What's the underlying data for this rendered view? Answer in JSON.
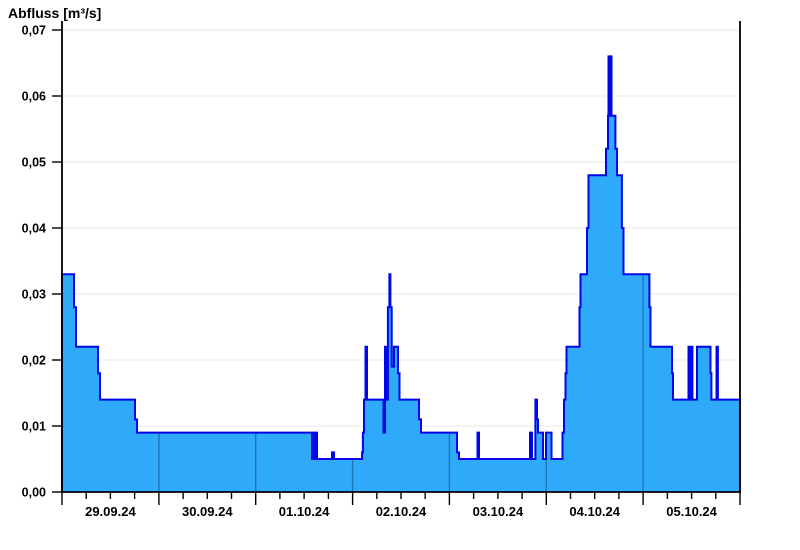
{
  "chart_data": {
    "type": "area",
    "title": "Abfluss [m³/s]",
    "ylabel": "Abfluss [m³/s]",
    "xlabel": "",
    "ylim": [
      0,
      0.07
    ],
    "x_days_total": 7,
    "x_unit": "days since 29.09.24 00:00",
    "grid": "horizontal-light, day-separators-inside-fill",
    "legend": "none",
    "y_ticks": [
      0,
      0.01,
      0.02,
      0.03,
      0.04,
      0.05,
      0.06,
      0.07
    ],
    "y_tick_labels": [
      "0,00",
      "0,01",
      "0,02",
      "0,03",
      "0,04",
      "0,05",
      "0,06",
      "0,07"
    ],
    "x_day_labels": [
      "29.09.24",
      "30.09.24",
      "01.10.24",
      "02.10.24",
      "03.10.24",
      "04.10.24",
      "05.10.24"
    ],
    "minor_ticks_per_day": 4,
    "step_points": [
      [
        0.0,
        0.033
      ],
      [
        0.124,
        0.028
      ],
      [
        0.145,
        0.022
      ],
      [
        0.372,
        0.018
      ],
      [
        0.392,
        0.014
      ],
      [
        0.754,
        0.011
      ],
      [
        0.774,
        0.009
      ],
      [
        2.581,
        0.005
      ],
      [
        2.591,
        0.009
      ],
      [
        2.607,
        0.005
      ],
      [
        2.617,
        0.009
      ],
      [
        2.633,
        0.005
      ],
      [
        2.788,
        0.006
      ],
      [
        2.808,
        0.005
      ],
      [
        3.097,
        0.006
      ],
      [
        3.107,
        0.009
      ],
      [
        3.118,
        0.014
      ],
      [
        3.133,
        0.022
      ],
      [
        3.149,
        0.014
      ],
      [
        3.319,
        0.009
      ],
      [
        3.335,
        0.022
      ],
      [
        3.35,
        0.014
      ],
      [
        3.365,
        0.028
      ],
      [
        3.38,
        0.033
      ],
      [
        3.391,
        0.028
      ],
      [
        3.404,
        0.019
      ],
      [
        3.427,
        0.022
      ],
      [
        3.469,
        0.018
      ],
      [
        3.484,
        0.014
      ],
      [
        3.686,
        0.011
      ],
      [
        3.706,
        0.009
      ],
      [
        4.078,
        0.006
      ],
      [
        4.099,
        0.005
      ],
      [
        4.29,
        0.009
      ],
      [
        4.305,
        0.005
      ],
      [
        4.832,
        0.009
      ],
      [
        4.852,
        0.005
      ],
      [
        4.888,
        0.014
      ],
      [
        4.904,
        0.011
      ],
      [
        4.914,
        0.009
      ],
      [
        4.966,
        0.005
      ],
      [
        4.997,
        0.009
      ],
      [
        5.054,
        0.005
      ],
      [
        5.167,
        0.009
      ],
      [
        5.183,
        0.014
      ],
      [
        5.198,
        0.018
      ],
      [
        5.209,
        0.022
      ],
      [
        5.343,
        0.028
      ],
      [
        5.353,
        0.033
      ],
      [
        5.42,
        0.04
      ],
      [
        5.436,
        0.048
      ],
      [
        5.617,
        0.052
      ],
      [
        5.637,
        0.057
      ],
      [
        5.642,
        0.066
      ],
      [
        5.653,
        0.057
      ],
      [
        5.663,
        0.066
      ],
      [
        5.673,
        0.057
      ],
      [
        5.714,
        0.052
      ],
      [
        5.73,
        0.048
      ],
      [
        5.781,
        0.04
      ],
      [
        5.797,
        0.033
      ],
      [
        6.065,
        0.028
      ],
      [
        6.076,
        0.022
      ],
      [
        6.298,
        0.018
      ],
      [
        6.308,
        0.014
      ],
      [
        6.468,
        0.022
      ],
      [
        6.483,
        0.014
      ],
      [
        6.494,
        0.022
      ],
      [
        6.509,
        0.014
      ],
      [
        6.556,
        0.022
      ],
      [
        6.695,
        0.018
      ],
      [
        6.705,
        0.014
      ],
      [
        6.757,
        0.022
      ],
      [
        6.772,
        0.014
      ]
    ],
    "colors": {
      "fill": "#2fa9f9",
      "line": "#0007e8",
      "grid": "#e9e9e9",
      "day_line": "#1e74b8",
      "axis": "#000000",
      "text": "#000000",
      "background": "#ffffff"
    }
  }
}
